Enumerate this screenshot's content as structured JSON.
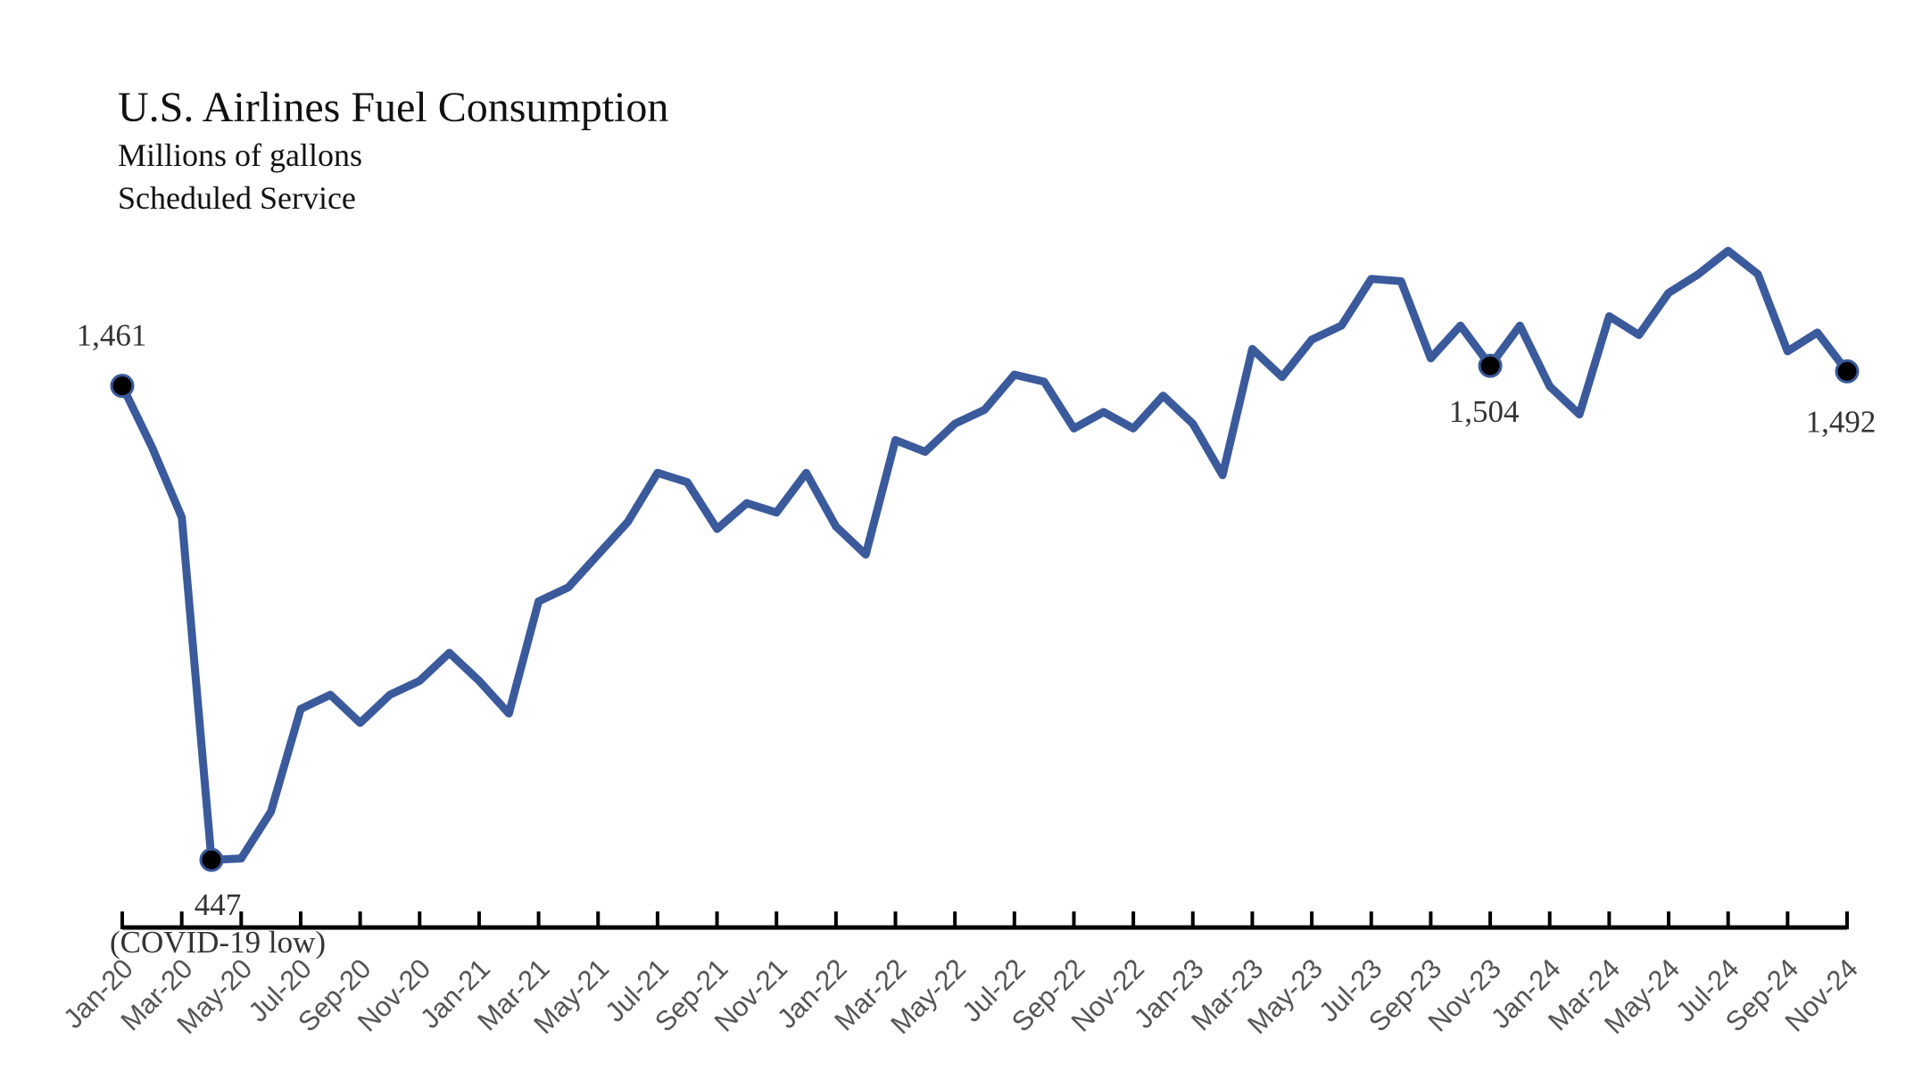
{
  "chart_data": {
    "type": "line",
    "title": "U.S. Airlines Fuel Consumption",
    "subtitle": [
      "Millions of gallons",
      "Scheduled Service"
    ],
    "xlabel": "",
    "ylabel": "",
    "ylim": [
      350,
      1800
    ],
    "grid": false,
    "legend": "none",
    "line_color": "#3A5A9C",
    "marker_color": "#000000",
    "x": [
      "Jan-20",
      "Feb-20",
      "Mar-20",
      "Apr-20",
      "May-20",
      "Jun-20",
      "Jul-20",
      "Aug-20",
      "Sep-20",
      "Oct-20",
      "Nov-20",
      "Dec-20",
      "Jan-21",
      "Feb-21",
      "Mar-21",
      "Apr-21",
      "May-21",
      "Jun-21",
      "Jul-21",
      "Aug-21",
      "Sep-21",
      "Oct-21",
      "Nov-21",
      "Dec-21",
      "Jan-22",
      "Feb-22",
      "Mar-22",
      "Apr-22",
      "May-22",
      "Jun-22",
      "Jul-22",
      "Aug-22",
      "Sep-22",
      "Oct-22",
      "Nov-22",
      "Dec-22",
      "Jan-23",
      "Feb-23",
      "Mar-23",
      "Apr-23",
      "May-23",
      "Jun-23",
      "Jul-23",
      "Aug-23",
      "Sep-23",
      "Oct-23",
      "Nov-23",
      "Dec-23",
      "Jan-24",
      "Feb-24",
      "Mar-24",
      "Apr-24",
      "May-24",
      "Jun-24",
      "Jul-24",
      "Aug-24",
      "Sep-24",
      "Oct-24",
      "Nov-24"
    ],
    "tick_labels": [
      "Jan-20",
      "Mar-20",
      "May-20",
      "Jul-20",
      "Sep-20",
      "Nov-20",
      "Jan-21",
      "Mar-21",
      "May-21",
      "Jul-21",
      "Sep-21",
      "Nov-21",
      "Jan-22",
      "Mar-22",
      "May-22",
      "Jul-22",
      "Sep-22",
      "Nov-22",
      "Jan-23",
      "Mar-23",
      "May-23",
      "Jul-23",
      "Sep-23",
      "Nov-23",
      "Jan-24",
      "Mar-24",
      "May-24",
      "Jul-24",
      "Sep-24",
      "Nov-24"
    ],
    "series": [
      {
        "values": [
          1461,
          1330,
          1180,
          447,
          450,
          550,
          770,
          800,
          740,
          800,
          830,
          890,
          830,
          760,
          1000,
          1030,
          1100,
          1170,
          1275,
          1255,
          1155,
          1210,
          1190,
          1275,
          1160,
          1100,
          1345,
          1320,
          1380,
          1410,
          1485,
          1470,
          1370,
          1405,
          1370,
          1440,
          1380,
          1270,
          1540,
          1480,
          1560,
          1590,
          1690,
          1685,
          1520,
          1590,
          1504,
          1590,
          1460,
          1400,
          1610,
          1570,
          1660,
          1700,
          1750,
          1700,
          1535,
          1575,
          1492
        ]
      }
    ],
    "annotations": [
      {
        "x": "Jan-20",
        "text": "1,461"
      },
      {
        "x": "Apr-20",
        "text": "447"
      },
      {
        "x": "Apr-20",
        "text": "(COVID-19 low)"
      },
      {
        "x": "Nov-23",
        "text": "1,504"
      },
      {
        "x": "Nov-24",
        "text": "1,492"
      }
    ]
  }
}
